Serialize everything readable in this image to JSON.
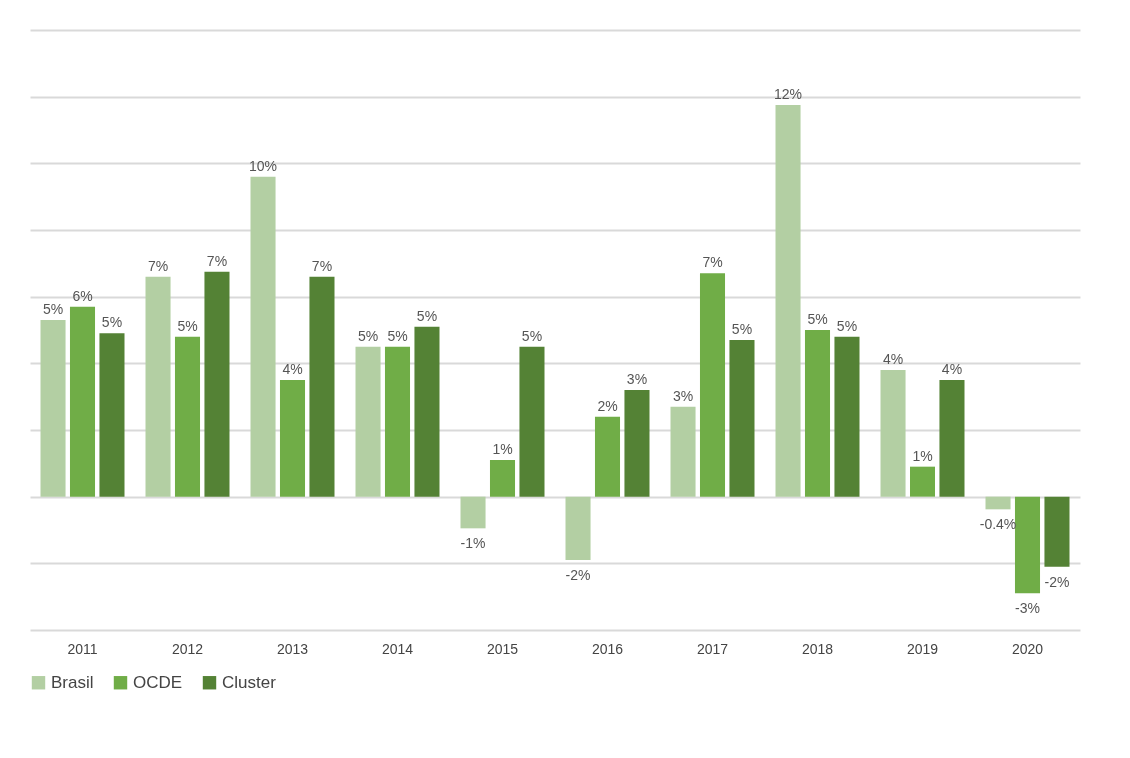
{
  "chart_data": {
    "type": "bar",
    "categories": [
      "2011",
      "2012",
      "2013",
      "2014",
      "2015",
      "2016",
      "2017",
      "2018",
      "2019",
      "2020"
    ],
    "series": [
      {
        "name": "Brasil",
        "color": "#b3cfa3",
        "values": [
          5.3,
          6.6,
          9.6,
          4.5,
          -0.95,
          -1.9,
          2.7,
          11.75,
          3.8,
          -0.38
        ],
        "value_labels": [
          "5%",
          "7%",
          "10%",
          "5%",
          "-1%",
          "-2%",
          "3%",
          "12%",
          "4%",
          "-0.4%"
        ]
      },
      {
        "name": "OCDE",
        "color": "#70ad47",
        "values": [
          5.7,
          4.8,
          3.5,
          4.5,
          1.1,
          2.4,
          6.7,
          5.0,
          0.9,
          -2.9
        ],
        "value_labels": [
          "6%",
          "5%",
          "4%",
          "5%",
          "1%",
          "2%",
          "7%",
          "5%",
          "1%",
          "-3%"
        ]
      },
      {
        "name": "Cluster",
        "color": "#548235",
        "values": [
          4.9,
          6.75,
          6.6,
          5.1,
          4.5,
          3.2,
          4.7,
          4.8,
          3.5,
          -2.1
        ],
        "value_labels": [
          "5%",
          "7%",
          "7%",
          "5%",
          "5%",
          "3%",
          "5%",
          "5%",
          "4%",
          "-2%"
        ]
      }
    ],
    "ylim": [
      -4,
      14
    ],
    "yticks": [
      {
        "value": -4,
        "label": null
      },
      {
        "value": -2,
        "label": null
      },
      {
        "value": 0,
        "label": null
      },
      {
        "value": 2,
        "label": null
      },
      {
        "value": 4,
        "label": null
      },
      {
        "value": 6,
        "label": null
      },
      {
        "value": 8,
        "label": null
      },
      {
        "value": 10,
        "label": null
      },
      {
        "value": 12,
        "label": null
      },
      {
        "value": 14,
        "label": null
      }
    ],
    "grid": "y",
    "legend": "bottom",
    "tick_labels": "x"
  }
}
